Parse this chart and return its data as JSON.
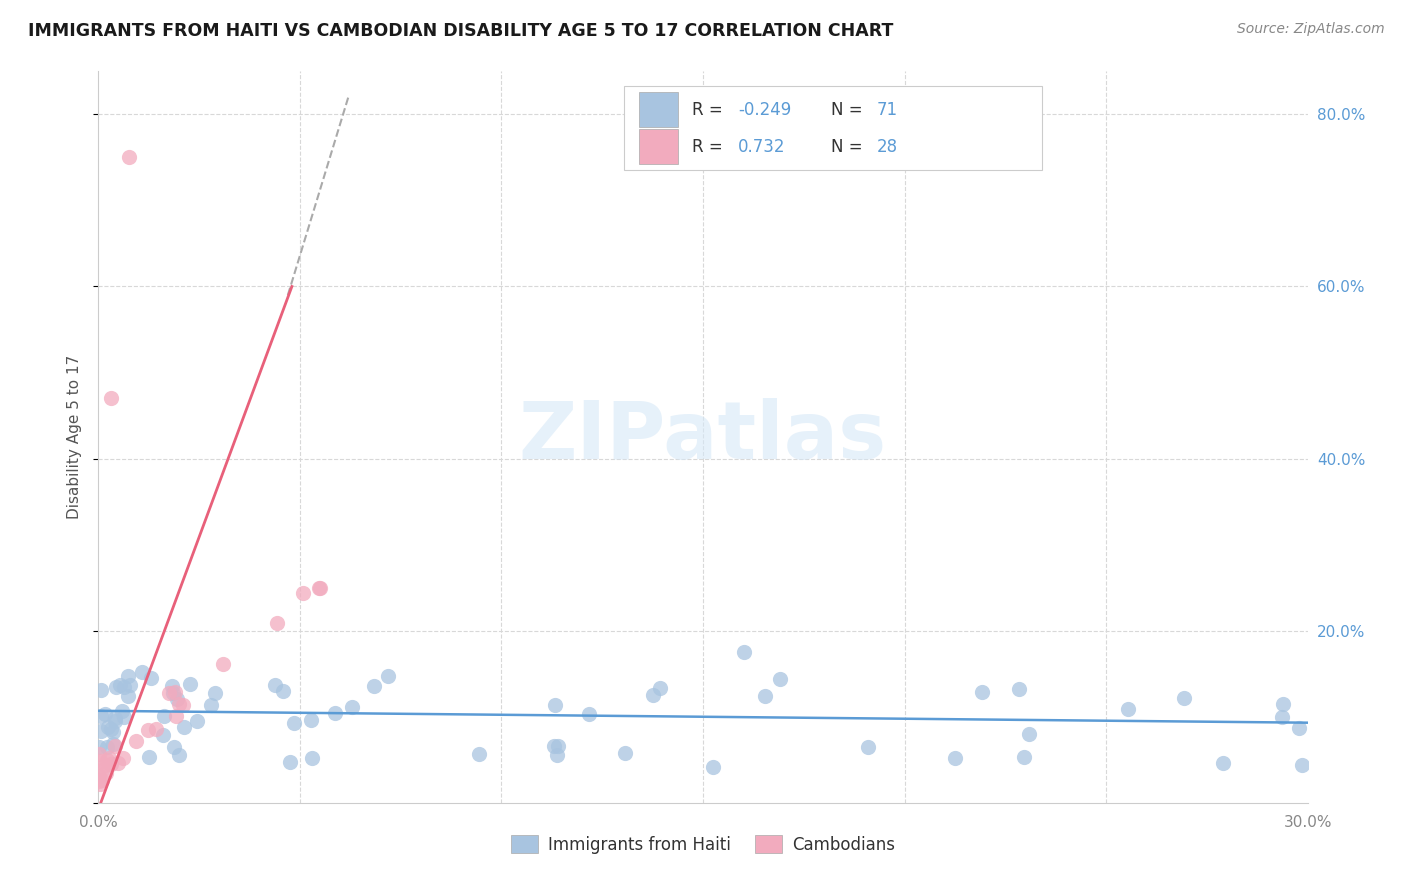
{
  "title": "IMMIGRANTS FROM HAITI VS CAMBODIAN DISABILITY AGE 5 TO 17 CORRELATION CHART",
  "source": "Source: ZipAtlas.com",
  "ylabel": "Disability Age 5 to 17",
  "xlim": [
    0.0,
    0.3
  ],
  "ylim": [
    0.0,
    0.85
  ],
  "xtick_vals": [
    0.0,
    0.05,
    0.1,
    0.15,
    0.2,
    0.25,
    0.3
  ],
  "xtick_labels": [
    "0.0%",
    "",
    "",
    "",
    "",
    "",
    "30.0%"
  ],
  "ytick_vals": [
    0.0,
    0.2,
    0.4,
    0.6,
    0.8
  ],
  "ytick_right_labels": [
    "",
    "20.0%",
    "40.0%",
    "60.0%",
    "80.0%"
  ],
  "haiti_color": "#a8c4e0",
  "cambodian_color": "#f2abbe",
  "haiti_trend_color": "#5b9bd5",
  "cambodian_trend_color": "#e8607a",
  "haiti_R": -0.249,
  "haiti_N": 71,
  "cambodian_R": 0.732,
  "cambodian_N": 28,
  "legend_labels": [
    "Immigrants from Haiti",
    "Cambodians"
  ],
  "watermark": "ZIPatlas",
  "background_color": "#ffffff",
  "grid_color": "#d8d8d8",
  "legend_R_color": "#5b9bd5",
  "legend_N_color": "#5b9bd5",
  "legend_text_color": "#333333"
}
